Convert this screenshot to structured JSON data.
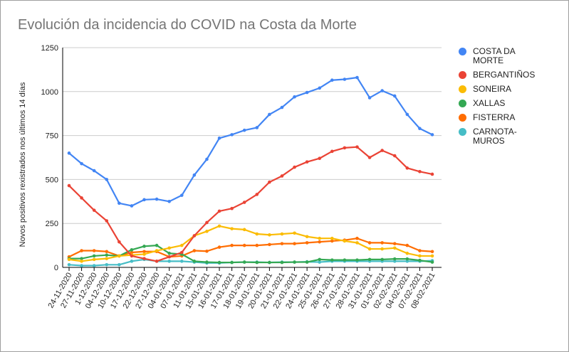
{
  "chart_data": {
    "type": "line",
    "title": "Evolución da incidencia do COVID na Costa da Morte",
    "xlabel": "",
    "ylabel": "Novos positivos rexistrados nos últimos 14 días",
    "ylim": [
      0,
      1250
    ],
    "yticks": [
      "0",
      "250",
      "500",
      "750",
      "1000",
      "1250"
    ],
    "grid": true,
    "legend_position": "right",
    "categories": [
      "24-11-2020",
      "27-11-2020",
      "1-12-2020",
      "04-12-2020",
      "10-12-2020",
      "17-12-2020",
      "22-12-2020",
      "27-12-2020",
      "04-01-2021",
      "07-01-2021",
      "11-01-2021",
      "15-01-2021",
      "16-01-2021",
      "17-01-2021",
      "18-01-2021",
      "19-01-2021",
      "20-01-2021",
      "21-01-2021",
      "22-01-2021",
      "24-01-2021",
      "25-01-2021",
      "26-01-2021",
      "27-01-2021",
      "28-01-2021",
      "31-01-2021",
      "01-02-2021",
      "02-02-2021",
      "04-02-2021",
      "07-02-2021",
      "08-02-2021"
    ],
    "series": [
      {
        "name": "COSTA DA MORTE",
        "color": "#4285f4",
        "values": [
          650,
          590,
          550,
          500,
          365,
          350,
          385,
          388,
          375,
          410,
          525,
          615,
          735,
          755,
          780,
          795,
          870,
          910,
          970,
          995,
          1020,
          1065,
          1070,
          1080,
          965,
          1005,
          975,
          870,
          790,
          755
        ]
      },
      {
        "name": "BERGANTIÑOS",
        "color": "#ea4335",
        "values": [
          465,
          395,
          325,
          265,
          145,
          65,
          50,
          35,
          60,
          85,
          180,
          255,
          320,
          335,
          370,
          415,
          485,
          520,
          570,
          600,
          620,
          660,
          680,
          685,
          625,
          665,
          635,
          565,
          545,
          530
        ]
      },
      {
        "name": "SONEIRA",
        "color": "#fbbc04",
        "values": [
          45,
          35,
          45,
          50,
          65,
          70,
          75,
          95,
          110,
          125,
          180,
          205,
          235,
          220,
          215,
          190,
          185,
          190,
          195,
          175,
          165,
          165,
          150,
          140,
          105,
          105,
          110,
          80,
          65,
          65
        ]
      },
      {
        "name": "XALLAS",
        "color": "#34a853",
        "values": [
          50,
          50,
          65,
          70,
          65,
          100,
          120,
          125,
          80,
          75,
          35,
          30,
          28,
          28,
          30,
          28,
          28,
          28,
          30,
          30,
          45,
          42,
          42,
          42,
          45,
          45,
          48,
          48,
          40,
          30
        ]
      },
      {
        "name": "FISTERRA",
        "color": "#ff6d01",
        "values": [
          60,
          95,
          95,
          90,
          65,
          85,
          90,
          90,
          60,
          65,
          95,
          92,
          115,
          125,
          125,
          125,
          130,
          135,
          135,
          140,
          145,
          150,
          155,
          165,
          140,
          140,
          135,
          125,
          95,
          90
        ]
      },
      {
        "name": "CARNOTA-MUROS",
        "color": "#46bdc6",
        "values": [
          15,
          10,
          10,
          15,
          15,
          35,
          45,
          35,
          35,
          35,
          30,
          25,
          25,
          28,
          30,
          30,
          28,
          30,
          30,
          32,
          30,
          35,
          35,
          35,
          35,
          35,
          35,
          35,
          35,
          38
        ]
      }
    ]
  }
}
